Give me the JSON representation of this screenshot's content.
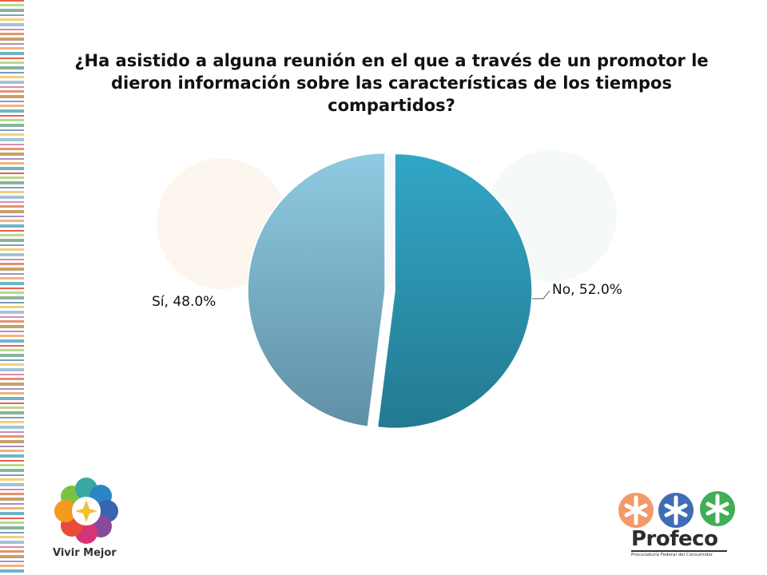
{
  "chart_data": {
    "type": "pie",
    "title_lines": [
      "¿Ha asistido a alguna reunión en el que a través de un promotor le",
      "dieron información sobre las características de los tiempos",
      "compartidos?"
    ],
    "slices": [
      {
        "label": "No",
        "value": 52.0,
        "data_label": "No, 52.0%",
        "color_top": "#33a6c6",
        "color_bottom": "#227a90"
      },
      {
        "label": "Sí",
        "value": 48.0,
        "data_label": "Sí, 48.0%",
        "color_top": "#8fcbe2",
        "color_bottom": "#5f8fa5"
      }
    ],
    "start": "12 o'clock, clockwise",
    "legend": "none",
    "exploded": true
  },
  "branding": {
    "left_logo_text": "Vivir Mejor",
    "right_logo_name": "Profeco",
    "right_logo_subtitle": "Procuraduría Federal del Consumidor"
  },
  "colors": {
    "watermark": "#fdf6ee",
    "title": "#111111"
  }
}
